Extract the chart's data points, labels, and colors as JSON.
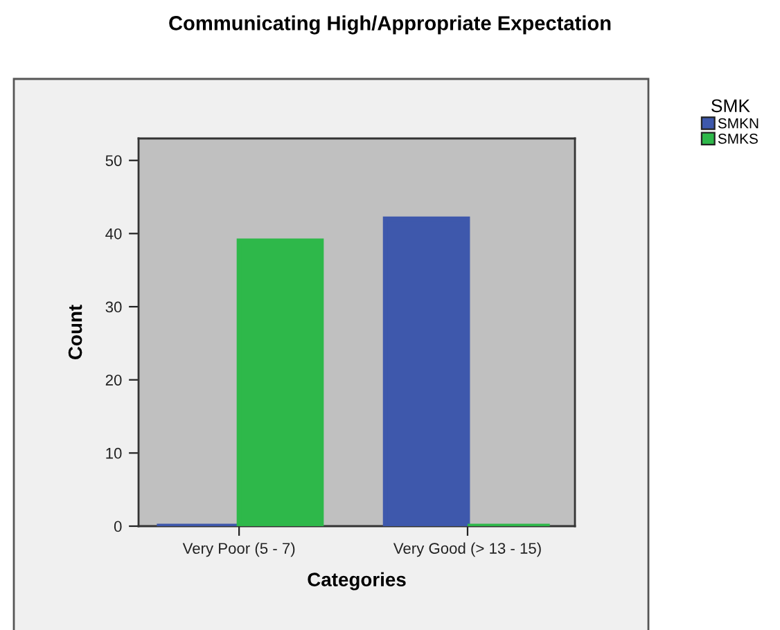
{
  "chart_data": {
    "type": "bar",
    "title": "Communicating High/Appropriate Expectation",
    "xlabel": "Categories",
    "ylabel": "Count",
    "legend_title": "SMK",
    "categories": [
      "Very Poor (5 - 7)",
      "Very Good (> 13 - 15)"
    ],
    "series": [
      {
        "name": "SMKN",
        "color": "#3e58ac",
        "values": [
          0,
          42
        ]
      },
      {
        "name": "SMKS",
        "color": "#2eb84a",
        "values": [
          39,
          0
        ]
      }
    ],
    "ylim": [
      0,
      53
    ],
    "yticks": [
      0,
      10,
      20,
      30,
      40,
      50
    ],
    "grid": false,
    "legend": "top right"
  }
}
